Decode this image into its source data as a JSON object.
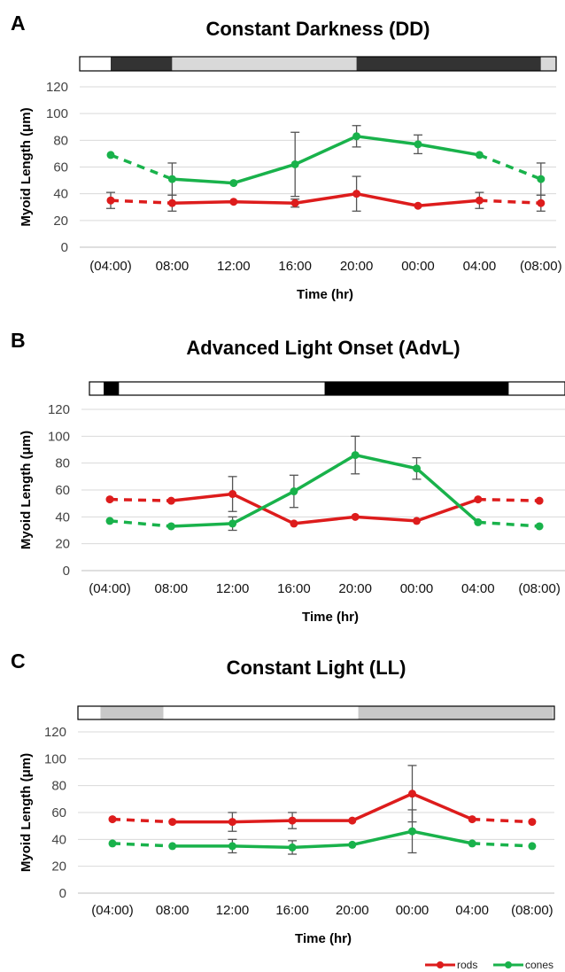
{
  "colors": {
    "rods": "#dd1c1c",
    "cones": "#19b24b",
    "grid": "#d9d9d9",
    "error_bar": "#555555"
  },
  "legend": [
    {
      "name": "rods",
      "color": "#dd1c1c"
    },
    {
      "name": "cones",
      "color": "#19b24b"
    }
  ],
  "chart_data": [
    {
      "type": "line",
      "panel": "A",
      "title": "Constant Darkness (DD)",
      "xlabel": "Time (hr)",
      "ylabel": "Myoid Length (μm)",
      "categories": [
        "(04:00)",
        "08:00",
        "12:00",
        "16:00",
        "20:00",
        "00:00",
        "04:00",
        "(08:00)"
      ],
      "ylim": [
        0,
        120
      ],
      "yticks": [
        0,
        20,
        40,
        60,
        80,
        100,
        120
      ],
      "grid": true,
      "light_bar": [
        {
          "shade": "dark",
          "color": "#333333",
          "span": [
            0,
            1.0
          ]
        },
        {
          "shade": "light-gray",
          "color": "#d9d9d9",
          "span": [
            1.0,
            4.0
          ]
        },
        {
          "shade": "dark",
          "color": "#333333",
          "span": [
            4.0,
            7.0
          ]
        },
        {
          "shade": "light-gray",
          "color": "#d9d9d9",
          "span": [
            7.0,
            7.4
          ]
        }
      ],
      "series": [
        {
          "name": "rods",
          "values": [
            35,
            33,
            34,
            33,
            40,
            31,
            35,
            33
          ],
          "errors": [
            6,
            6,
            0,
            3,
            13,
            0,
            6,
            6
          ]
        },
        {
          "name": "cones",
          "values": [
            69,
            51,
            48,
            62,
            83,
            77,
            69,
            51
          ],
          "errors": [
            0,
            12,
            0,
            24,
            8,
            7,
            0,
            12
          ]
        }
      ]
    },
    {
      "type": "line",
      "panel": "B",
      "title": "Advanced Light Onset (AdvL)",
      "xlabel": "Time (hr)",
      "ylabel": "Myoid Length (μm)",
      "categories": [
        "(04:00)",
        "08:00",
        "12:00",
        "16:00",
        "20:00",
        "00:00",
        "04:00",
        "(08:00)"
      ],
      "ylim": [
        0,
        120
      ],
      "yticks": [
        0,
        20,
        40,
        60,
        80,
        100,
        120
      ],
      "grid": true,
      "light_bar": [
        {
          "shade": "black",
          "color": "#000000",
          "span": [
            -0.1,
            0.15
          ]
        },
        {
          "shade": "white",
          "color": "#ffffff",
          "span": [
            0.15,
            3.5
          ]
        },
        {
          "shade": "black",
          "color": "#000000",
          "span": [
            3.5,
            6.5
          ]
        },
        {
          "shade": "white",
          "color": "#ffffff",
          "span": [
            6.5,
            7.5
          ]
        }
      ],
      "series": [
        {
          "name": "rods",
          "values": [
            53,
            52,
            57,
            35,
            40,
            37,
            53,
            52
          ],
          "errors": [
            0,
            0,
            13,
            0,
            0,
            0,
            0,
            0
          ]
        },
        {
          "name": "cones",
          "values": [
            37,
            33,
            35,
            59,
            86,
            76,
            36,
            33
          ],
          "errors": [
            0,
            0,
            5,
            12,
            14,
            8,
            0,
            0
          ]
        }
      ]
    },
    {
      "type": "line",
      "panel": "C",
      "title": "Constant Light (LL)",
      "xlabel": "Time (hr)",
      "ylabel": "Myoid Length (μm)",
      "categories": [
        "(04:00)",
        "08:00",
        "12:00",
        "16:00",
        "20:00",
        "00:00",
        "04:00",
        "(08:00)"
      ],
      "ylim": [
        0,
        120
      ],
      "yticks": [
        0,
        20,
        40,
        60,
        80,
        100,
        120
      ],
      "grid": true,
      "light_bar": [
        {
          "shade": "gray",
          "color": "#c8c8c8",
          "span": [
            -0.2,
            0.85
          ]
        },
        {
          "shade": "white",
          "color": "#ffffff",
          "span": [
            0.85,
            4.1
          ]
        },
        {
          "shade": "gray",
          "color": "#c8c8c8",
          "span": [
            4.1,
            7.35
          ]
        },
        {
          "shade": "white",
          "color": "#ffffff",
          "span": [
            7.35,
            7.75
          ]
        }
      ],
      "series": [
        {
          "name": "rods",
          "values": [
            55,
            53,
            53,
            54,
            54,
            74,
            55,
            53
          ],
          "errors": [
            0,
            0,
            7,
            6,
            0,
            21,
            0,
            0
          ]
        },
        {
          "name": "cones",
          "values": [
            37,
            35,
            35,
            34,
            36,
            46,
            37,
            35
          ],
          "errors": [
            0,
            0,
            5,
            5,
            0,
            16,
            0,
            0
          ]
        }
      ]
    }
  ]
}
